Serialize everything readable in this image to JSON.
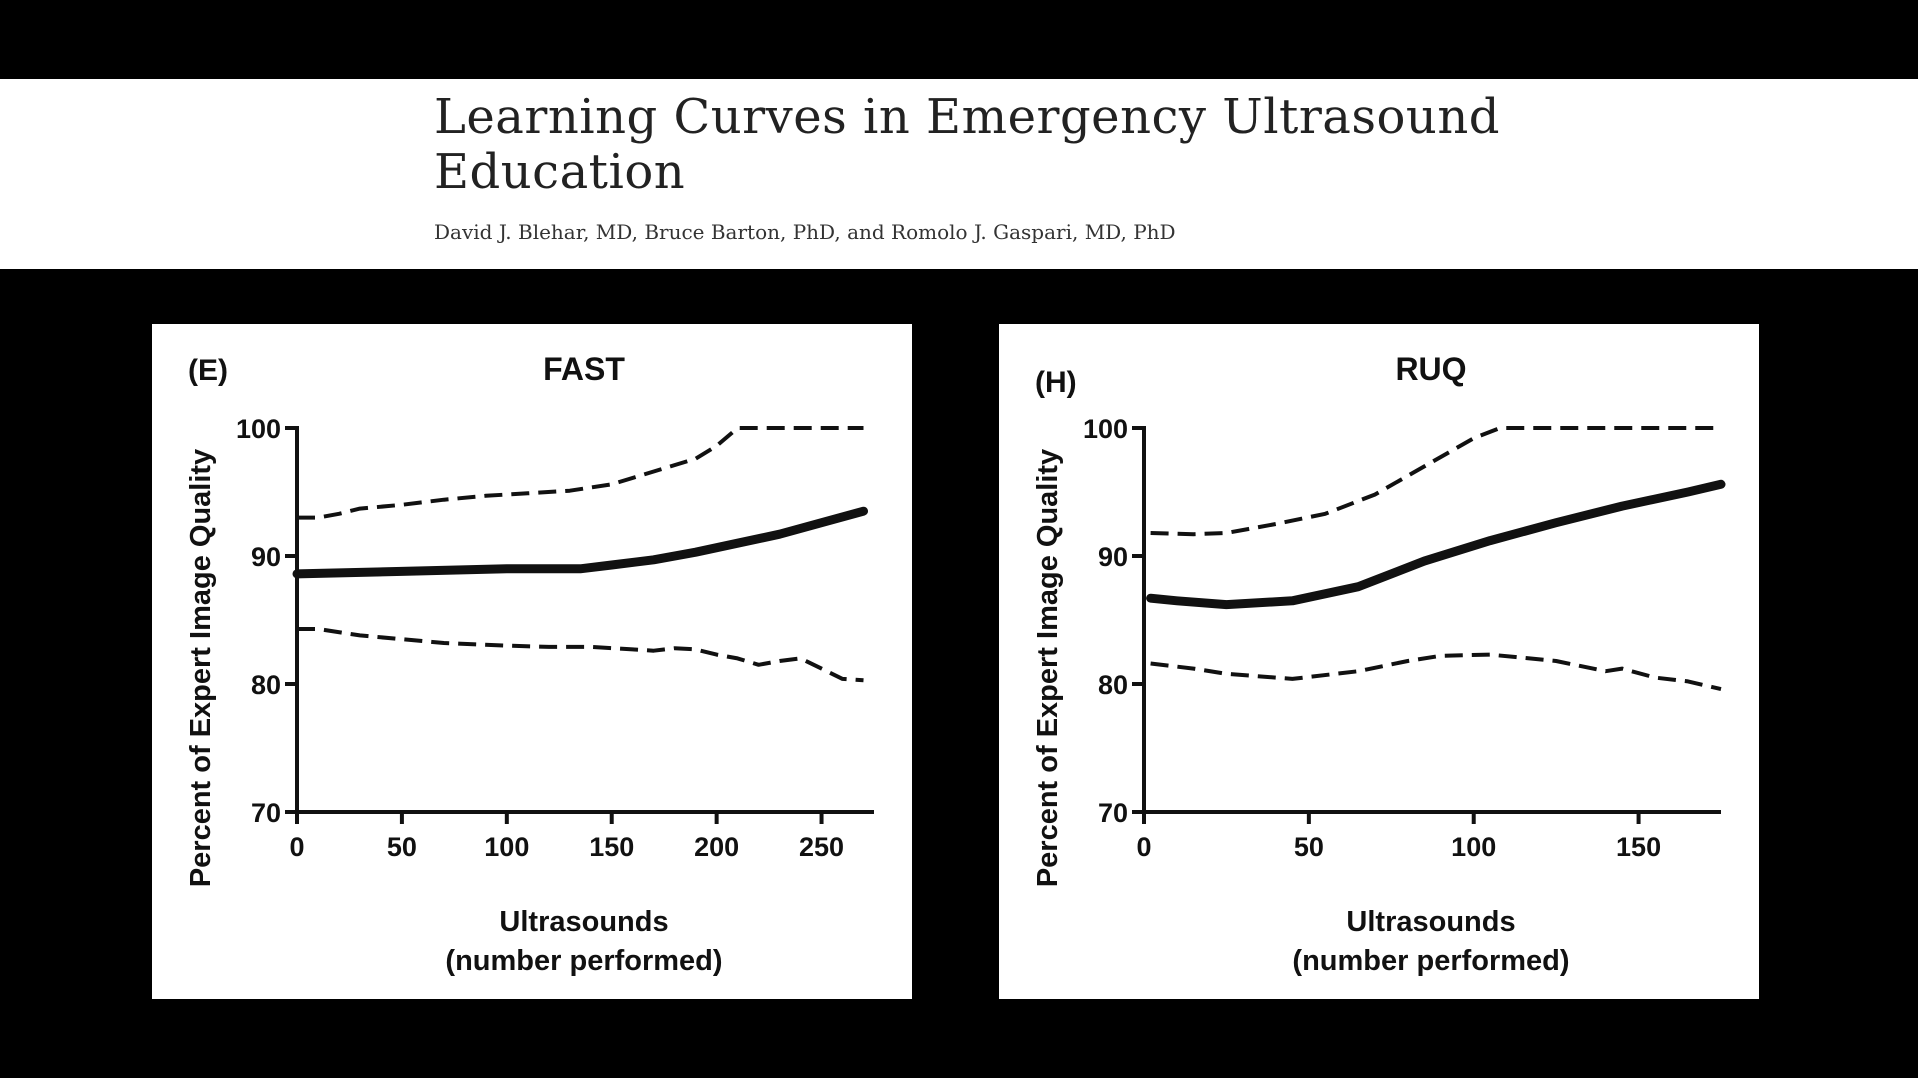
{
  "header": {
    "title": "Learning Curves in Emergency Ultrasound Education",
    "authors": "David J. Blehar, MD, Bruce Barton, PhD, and Romolo J. Gaspari, MD, PhD"
  },
  "colors": {
    "background": "#000000",
    "panel": "#ffffff",
    "ink": "#111111"
  },
  "chart_data": [
    {
      "type": "line",
      "panel_label": "(E)",
      "title": "FAST",
      "xlabel_line1": "Ultrasounds",
      "xlabel_line2": "(number performed)",
      "ylabel": "Percent of Expert Image Quality",
      "xlim": [
        0,
        275
      ],
      "ylim": [
        70,
        100
      ],
      "xticks": [
        0,
        50,
        100,
        150,
        200,
        250
      ],
      "yticks": [
        70,
        80,
        90,
        100
      ],
      "series": [
        {
          "name": "upper 95% CI",
          "style": "dashed",
          "x": [
            0,
            10,
            20,
            30,
            50,
            70,
            90,
            110,
            130,
            150,
            170,
            190,
            200,
            210,
            220,
            240,
            260,
            270
          ],
          "y": [
            93.0,
            93.0,
            93.3,
            93.7,
            94.0,
            94.4,
            94.7,
            94.9,
            95.1,
            95.6,
            96.6,
            97.6,
            98.6,
            100,
            100,
            100,
            100,
            100
          ]
        },
        {
          "name": "estimate",
          "style": "solid",
          "x": [
            0,
            50,
            100,
            135,
            150,
            170,
            190,
            210,
            230,
            250,
            270
          ],
          "y": [
            88.6,
            88.8,
            89.0,
            89.0,
            89.3,
            89.7,
            90.3,
            91.0,
            91.7,
            92.6,
            93.5
          ]
        },
        {
          "name": "lower 95% CI",
          "style": "dashed",
          "x": [
            0,
            10,
            30,
            50,
            70,
            100,
            120,
            140,
            160,
            170,
            180,
            190,
            200,
            210,
            220,
            230,
            240,
            250,
            260,
            270
          ],
          "y": [
            84.3,
            84.3,
            83.8,
            83.5,
            83.2,
            83.0,
            82.9,
            82.9,
            82.7,
            82.6,
            82.8,
            82.7,
            82.3,
            82.0,
            81.5,
            81.8,
            82.0,
            81.2,
            80.4,
            80.3
          ]
        }
      ]
    },
    {
      "type": "line",
      "panel_label": "(H)",
      "title": "RUQ",
      "xlabel_line1": "Ultrasounds",
      "xlabel_line2": "(number performed)",
      "ylabel": "Percent of Expert Image Quality",
      "xlim": [
        0,
        175
      ],
      "ylim": [
        70,
        100
      ],
      "xticks": [
        0,
        50,
        100,
        150
      ],
      "yticks": [
        70,
        80,
        90,
        100
      ],
      "series": [
        {
          "name": "upper 95% CI",
          "style": "dashed",
          "x": [
            2,
            15,
            25,
            40,
            55,
            70,
            85,
            100,
            108,
            120,
            140,
            160,
            175
          ],
          "y": [
            91.8,
            91.7,
            91.8,
            92.5,
            93.3,
            94.8,
            97.0,
            99.2,
            100,
            100,
            100,
            100,
            100
          ]
        },
        {
          "name": "estimate",
          "style": "solid",
          "x": [
            2,
            10,
            25,
            45,
            65,
            85,
            105,
            125,
            145,
            165,
            175
          ],
          "y": [
            86.7,
            86.5,
            86.2,
            86.5,
            87.6,
            89.6,
            91.2,
            92.6,
            93.9,
            95.0,
            95.6
          ]
        },
        {
          "name": "lower 95% CI",
          "style": "dashed",
          "x": [
            2,
            15,
            25,
            45,
            65,
            80,
            90,
            105,
            125,
            140,
            145,
            155,
            165,
            175
          ],
          "y": [
            81.6,
            81.2,
            80.8,
            80.4,
            81.0,
            81.8,
            82.2,
            82.3,
            81.8,
            81.0,
            81.2,
            80.5,
            80.2,
            79.6
          ]
        }
      ]
    }
  ]
}
